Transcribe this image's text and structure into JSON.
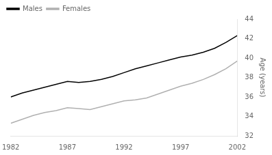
{
  "chart_data": {
    "type": "line",
    "ylabel": "Age (years)",
    "x": [
      1982,
      1983,
      1984,
      1985,
      1986,
      1987,
      1988,
      1989,
      1990,
      1991,
      1992,
      1993,
      1994,
      1995,
      1996,
      1997,
      1998,
      1999,
      2000,
      2001,
      2002
    ],
    "series": [
      {
        "name": "Males",
        "color": "#000000",
        "values": [
          36.0,
          36.4,
          36.7,
          37.0,
          37.3,
          37.6,
          37.5,
          37.6,
          37.8,
          38.1,
          38.5,
          38.9,
          39.2,
          39.5,
          39.8,
          40.1,
          40.3,
          40.6,
          41.0,
          41.6,
          42.3
        ]
      },
      {
        "name": "Females",
        "color": "#b0b0b0",
        "values": [
          33.3,
          33.7,
          34.1,
          34.4,
          34.6,
          34.9,
          34.8,
          34.7,
          35.0,
          35.3,
          35.6,
          35.7,
          35.9,
          36.3,
          36.7,
          37.1,
          37.4,
          37.8,
          38.3,
          38.9,
          39.7
        ]
      }
    ],
    "xlim": [
      1982,
      2002
    ],
    "xticks": [
      1982,
      1987,
      1992,
      1997,
      2002
    ],
    "ylim": [
      32,
      44
    ],
    "yticks": [
      32,
      34,
      36,
      38,
      40,
      42,
      44
    ],
    "grid": false,
    "legend": "upper left"
  }
}
